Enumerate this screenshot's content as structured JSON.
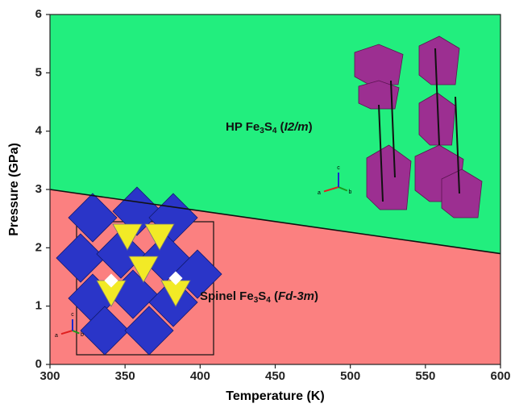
{
  "chart_data": {
    "type": "phase-diagram",
    "x_label": "Temperature (K)",
    "y_label": "Pressure (GPa)",
    "xlim": [
      300,
      600
    ],
    "xticks": [
      300,
      350,
      400,
      450,
      500,
      550,
      600
    ],
    "ylim": [
      0,
      6
    ],
    "yticks": [
      0,
      1,
      2,
      3,
      4,
      5,
      6
    ],
    "boundary": {
      "x": [
        300,
        600
      ],
      "values": [
        3.0,
        1.9
      ],
      "color": "#111111"
    },
    "regions": [
      {
        "side": "above",
        "color": "#22ee7e",
        "label_parts": [
          "HP Fe",
          "3",
          "S",
          "4",
          " (",
          "I2/m",
          ")"
        ]
      },
      {
        "side": "below",
        "color": "#fb8080",
        "label_parts": [
          "Spinel Fe",
          "3",
          "S",
          "4",
          " (",
          "Fd-3m",
          ")"
        ]
      }
    ],
    "structure_axes": [
      [
        "a",
        "b",
        "c"
      ],
      [
        "a",
        "b",
        "c"
      ]
    ]
  }
}
